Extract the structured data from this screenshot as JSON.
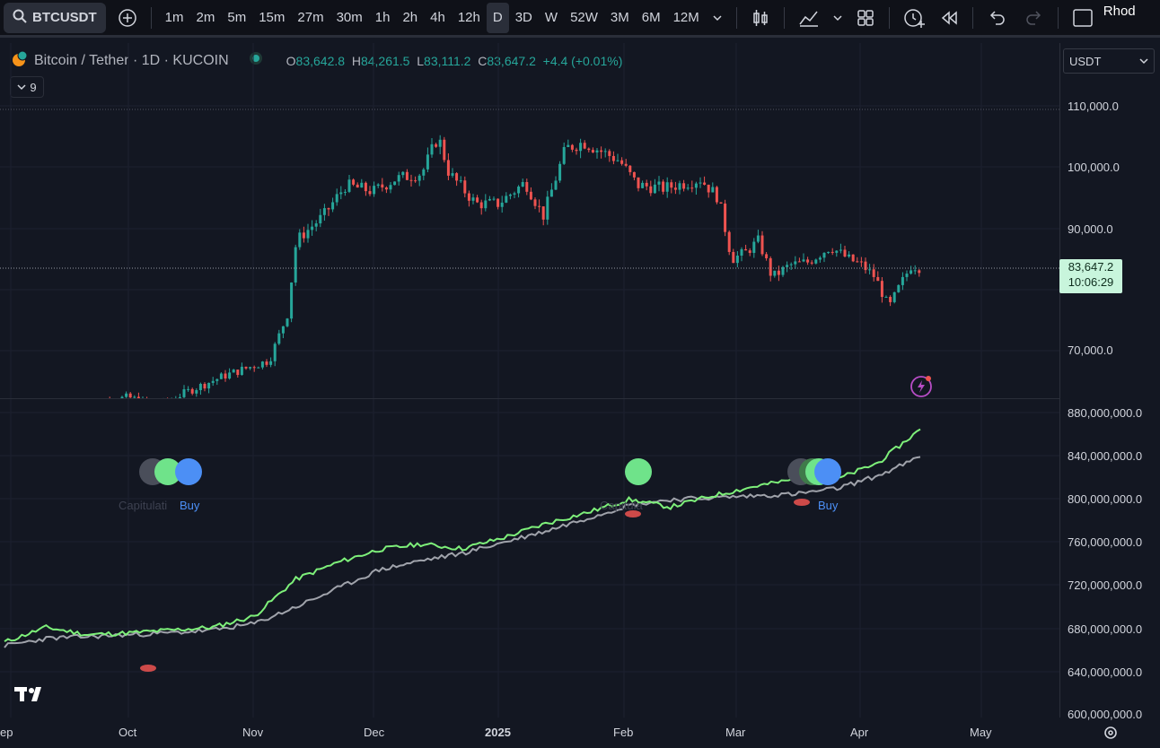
{
  "toolbar": {
    "symbol": "BTCUSDT",
    "timeframes": [
      "1m",
      "2m",
      "5m",
      "15m",
      "27m",
      "30m",
      "1h",
      "2h",
      "4h",
      "12h",
      "D",
      "3D",
      "W",
      "52W",
      "3M",
      "6M",
      "12M"
    ],
    "active_timeframe": "D",
    "user": "Rhod"
  },
  "legend": {
    "title": "Bitcoin / Tether · 1D · KUCOIN",
    "o_label": "O",
    "o": "83,642.8",
    "h_label": "H",
    "h": "84,261.5",
    "l_label": "L",
    "l": "83,111.2",
    "c_label": "C",
    "c": "83,647.2",
    "change": "+4.4 (+0.01%)",
    "volume_badge": "9"
  },
  "currency_select": "USDT",
  "price_axis": {
    "labels": [
      "110,000.0",
      "100,000.0",
      "90,000.0",
      "70,000.0"
    ],
    "current_price": "83,647.2",
    "countdown": "10:06:29"
  },
  "indicator_axis": {
    "labels": [
      "880,000,000.0",
      "840,000,000.0",
      "800,000,000.0",
      "760,000,000.0",
      "720,000,000.0",
      "680,000,000.0",
      "640,000,000.0",
      "600,000,000.0"
    ]
  },
  "time_axis": {
    "labels": [
      "ep",
      "Oct",
      "Nov",
      "Dec",
      "2025",
      "Feb",
      "Mar",
      "Apr",
      "May"
    ]
  },
  "signals": {
    "capitulation": "Capitulati",
    "buy": "Buy",
    "capitulation2": "Capitula",
    "buy2": "Buy"
  },
  "colors": {
    "up": "#26a69a",
    "down": "#ef5350",
    "bg": "#131722",
    "line_green": "#7ef07a",
    "line_gray": "#a0a3ab",
    "dot_green": "#6fe38a",
    "dot_blue": "#4c8ff5"
  },
  "chart_data": [
    {
      "type": "candlestick",
      "pane": "price",
      "yrange": [
        60000,
        115000
      ],
      "candle_count": 225,
      "approx_closes_by_month": {
        "Sep": 61000,
        "Oct": 64000,
        "Nov": 70000,
        "Dec": 97000,
        "Jan": 97000,
        "Feb": 98000,
        "Mar": 83000,
        "Apr": 83600
      }
    },
    {
      "type": "line",
      "pane": "indicator",
      "yrange": [
        600000000,
        880000000
      ],
      "series": [
        {
          "values": [
            632,
            648,
            640,
            642,
            645,
            648,
            660,
            700,
            718,
            732,
            738,
            733,
            745,
            760,
            772,
            786,
            778,
            790,
            800,
            808,
            808,
            826,
            862
          ]
        },
        {
          "values": [
            628,
            636,
            638,
            640,
            642,
            645,
            652,
            670,
            690,
            710,
            720,
            728,
            740,
            752,
            766,
            780,
            786,
            788,
            790,
            792,
            798,
            812,
            832
          ]
        }
      ]
    }
  ]
}
